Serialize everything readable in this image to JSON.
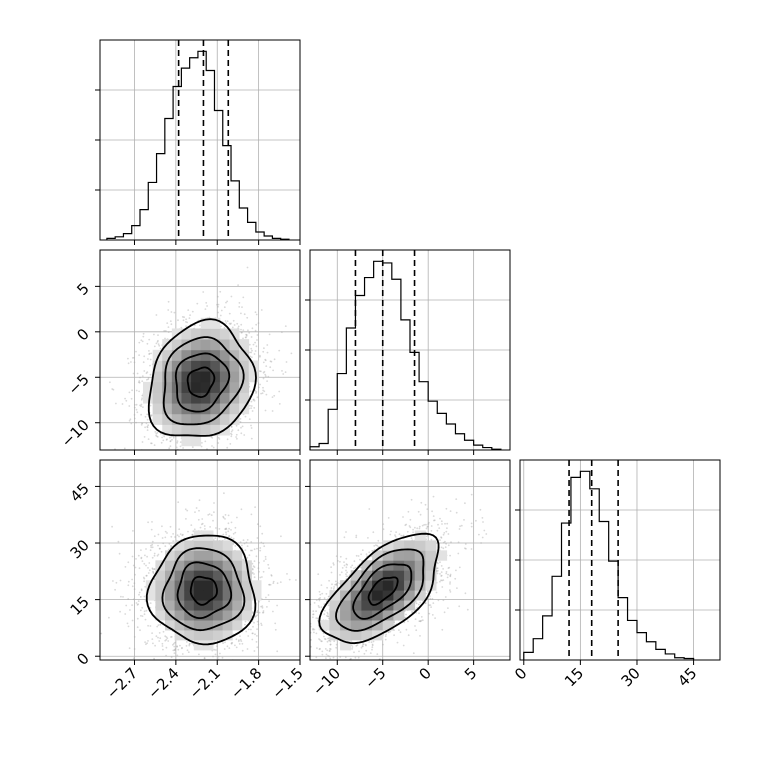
{
  "chart_data": {
    "type": "corner",
    "parameters": [
      {
        "id": "p0",
        "range": [
          -2.95,
          -1.5
        ],
        "ticks": [
          -2.7,
          -2.4,
          -2.1,
          -1.8,
          -1.5
        ],
        "tick_labels": [
          "−2.7",
          "−2.4",
          "−2.1",
          "−1.8",
          "−1.5"
        ],
        "quantiles": [
          -2.38,
          -2.2,
          -2.02
        ],
        "histogram": {
          "edges": [
            -2.9,
            -2.84,
            -2.78,
            -2.72,
            -2.66,
            -2.6,
            -2.54,
            -2.48,
            -2.42,
            -2.36,
            -2.3,
            -2.24,
            -2.18,
            -2.12,
            -2.06,
            -2.0,
            -1.94,
            -1.88,
            -1.82,
            -1.76,
            -1.7,
            -1.64,
            -1.58
          ],
          "counts": [
            2,
            4,
            8,
            18,
            38,
            72,
            108,
            152,
            192,
            215,
            228,
            236,
            212,
            162,
            118,
            74,
            40,
            22,
            10,
            5,
            2,
            1
          ]
        }
      },
      {
        "id": "p1",
        "range": [
          -13,
          9
        ],
        "ticks": [
          -10,
          -5,
          0,
          5
        ],
        "tick_labels": [
          "−10",
          "−5",
          "0",
          "5"
        ],
        "quantiles": [
          -8.0,
          -5.0,
          -1.5
        ],
        "histogram": {
          "edges": [
            -13,
            -12,
            -11,
            -10,
            -9,
            -8,
            -7,
            -6,
            -5,
            -4,
            -3,
            -2,
            -1,
            0,
            1,
            2,
            3,
            4,
            5,
            6,
            7,
            8
          ],
          "counts": [
            4,
            8,
            50,
            94,
            150,
            190,
            212,
            232,
            230,
            210,
            160,
            120,
            84,
            60,
            45,
            32,
            20,
            12,
            6,
            3,
            1
          ]
        }
      },
      {
        "id": "p2",
        "range": [
          -1,
          52
        ],
        "ticks": [
          0,
          15,
          30,
          45
        ],
        "tick_labels": [
          "0",
          "15",
          "30",
          "45"
        ],
        "quantiles": [
          12,
          18,
          25
        ],
        "histogram": {
          "edges": [
            0,
            2.5,
            5,
            7.5,
            10,
            12.5,
            15,
            17.5,
            20,
            22.5,
            25,
            27.5,
            30,
            32.5,
            35,
            37.5,
            40,
            42.5,
            45
          ],
          "counts": [
            10,
            28,
            58,
            110,
            180,
            240,
            248,
            225,
            182,
            130,
            82,
            52,
            36,
            24,
            14,
            8,
            3,
            2
          ]
        }
      }
    ],
    "pair_panels": [
      {
        "x": "p0",
        "y": "p1",
        "center": [
          -2.22,
          -5.5
        ],
        "sigma": [
          0.19,
          3.2
        ],
        "corr": 0.15
      },
      {
        "x": "p0",
        "y": "p2",
        "center": [
          -2.2,
          17.5
        ],
        "sigma": [
          0.19,
          7.2
        ],
        "corr": 0.0
      },
      {
        "x": "p1",
        "y": "p2",
        "center": [
          -5.0,
          17.5
        ],
        "sigma": [
          3.2,
          7.2
        ],
        "corr": 0.6
      }
    ],
    "contour_levels_sigma": [
      0.5,
      1.0,
      1.5,
      2.0
    ],
    "grid": true,
    "colors": {
      "line": "#000000",
      "scatter": "#aaaaaa",
      "grid": "#b0b0b0"
    }
  }
}
